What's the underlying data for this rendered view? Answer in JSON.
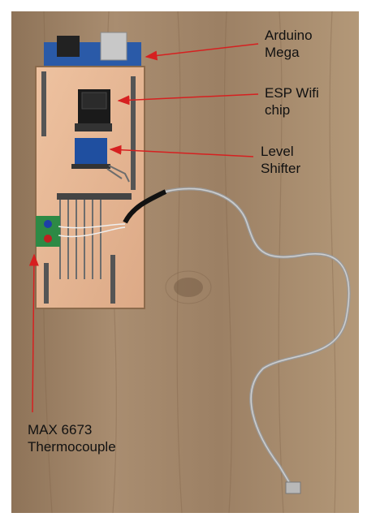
{
  "labels": {
    "arduino_mega": [
      "Arduino",
      "Mega"
    ],
    "esp_wifi_chip": [
      "ESP Wifi",
      "chip"
    ],
    "level_shifter": [
      "Level",
      "Shifter"
    ],
    "max_thermocouple": [
      "MAX 6673",
      "Thermocouple"
    ]
  },
  "colors": {
    "annotation_arrow": "#d62020",
    "wood": "#a88c6e",
    "pcb": "#e7b893",
    "arduino_blue": "#2a5aa8"
  }
}
